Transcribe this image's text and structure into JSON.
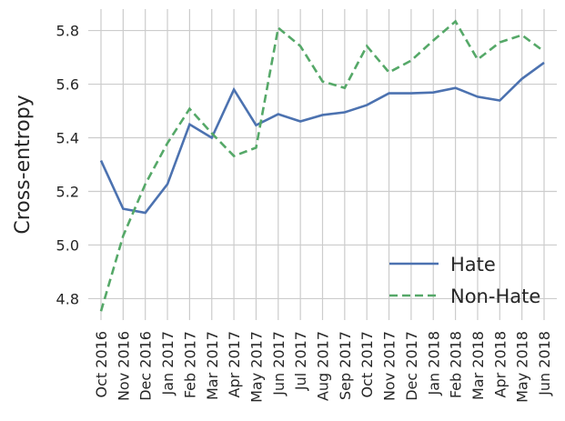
{
  "chart_data": {
    "type": "line",
    "ylabel": "Cross-entropy",
    "categories": [
      "Oct 2016",
      "Nov 2016",
      "Dec 2016",
      "Jan 2017",
      "Feb 2017",
      "Mar 2017",
      "Apr 2017",
      "May 2017",
      "Jun 2017",
      "Jul 2017",
      "Aug 2017",
      "Sep 2017",
      "Oct 2017",
      "Nov 2017",
      "Dec 2017",
      "Jan 2018",
      "Feb 2018",
      "Mar 2018",
      "Apr 2018",
      "May 2018",
      "Jun 2018"
    ],
    "series": [
      {
        "name": "Hate",
        "color": "#4c72b0",
        "dash": "solid",
        "values": [
          5.315,
          5.135,
          5.12,
          5.227,
          5.45,
          5.4,
          5.58,
          5.447,
          5.488,
          5.461,
          5.485,
          5.495,
          5.522,
          5.566,
          5.566,
          5.569,
          5.586,
          5.553,
          5.539,
          5.62,
          5.68
        ]
      },
      {
        "name": "Non-Hate",
        "color": "#55a868",
        "dash": "dashed",
        "values": [
          4.753,
          5.034,
          5.227,
          5.38,
          5.508,
          5.417,
          5.332,
          5.363,
          5.81,
          5.742,
          5.61,
          5.586,
          5.742,
          5.644,
          5.688,
          5.763,
          5.834,
          5.692,
          5.756,
          5.783,
          5.722
        ]
      }
    ],
    "ylim": [
      4.72,
      5.88
    ],
    "yticks": [
      4.8,
      {
        "value": 5,
        "label": "5.0"
      },
      5.2,
      5.4,
      5.6,
      5.8
    ],
    "grid": true,
    "legend": "lower right"
  }
}
